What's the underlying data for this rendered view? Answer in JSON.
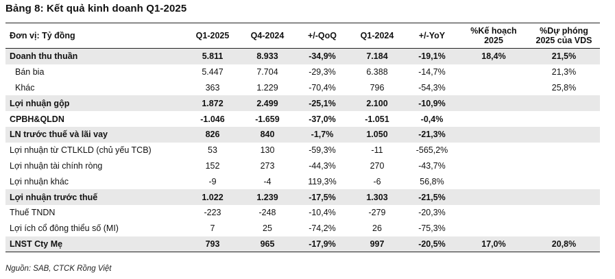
{
  "title": "Bảng 8: Kết quả kinh doanh Q1-2025",
  "headers": [
    "Đơn vị: Tỷ đồng",
    "Q1-2025",
    "Q4-2024",
    "+/-QoQ",
    "Q1-2024",
    "+/-YoY",
    "%Kế hoạch\n2025",
    "%Dự phóng\n2025 của VDS"
  ],
  "rows": [
    {
      "cells": [
        "Doanh thu thuần",
        "5.811",
        "8.933",
        "-34,9%",
        "7.184",
        "-19,1%",
        "18,4%",
        "21,5%"
      ]
    },
    {
      "cells": [
        "Bán bia",
        "5.447",
        "7.704",
        "-29,3%",
        "6.388",
        "-14,7%",
        "",
        "21,3%"
      ]
    },
    {
      "cells": [
        "Khác",
        "363",
        "1.229",
        "-70,4%",
        "796",
        "-54,3%",
        "",
        "25,8%"
      ]
    },
    {
      "cells": [
        "Lợi nhuận gộp",
        "1.872",
        "2.499",
        "-25,1%",
        "2.100",
        "-10,9%",
        "",
        ""
      ]
    },
    {
      "cells": [
        "CPBH&QLDN",
        "-1.046",
        "-1.659",
        "-37,0%",
        "-1.051",
        "-0,4%",
        "",
        ""
      ]
    },
    {
      "cells": [
        "LN trước thuế và lãi vay",
        "826",
        "840",
        "-1,7%",
        "1.050",
        "-21,3%",
        "",
        ""
      ]
    },
    {
      "cells": [
        "Lợi nhuận từ CTLKLD (chủ yếu TCB)",
        "53",
        "130",
        "-59,3%",
        "-11",
        "-565,2%",
        "",
        ""
      ]
    },
    {
      "cells": [
        "Lợi nhuận tài chính ròng",
        "152",
        "273",
        "-44,3%",
        "270",
        "-43,7%",
        "",
        ""
      ]
    },
    {
      "cells": [
        "Lợi nhuận khác",
        "-9",
        "-4",
        "119,3%",
        "-6",
        "56,8%",
        "",
        ""
      ]
    },
    {
      "cells": [
        "Lợi nhuận trước thuế",
        "1.022",
        "1.239",
        "-17,5%",
        "1.303",
        "-21,5%",
        "",
        ""
      ]
    },
    {
      "cells": [
        "Thuế TNDN",
        "-223",
        "-248",
        "-10,4%",
        "-279",
        "-20,3%",
        "",
        ""
      ]
    },
    {
      "cells": [
        "Lợi ích cổ đông thiểu số (MI)",
        "7",
        "25",
        "-74,2%",
        "26",
        "-75,3%",
        "",
        ""
      ]
    },
    {
      "cells": [
        "LNST Cty Mẹ",
        "793",
        "965",
        "-17,9%",
        "997",
        "-20,5%",
        "17,0%",
        "20,8%"
      ]
    }
  ],
  "source": "Nguồn: SAB, CTCK Rồng Việt"
}
